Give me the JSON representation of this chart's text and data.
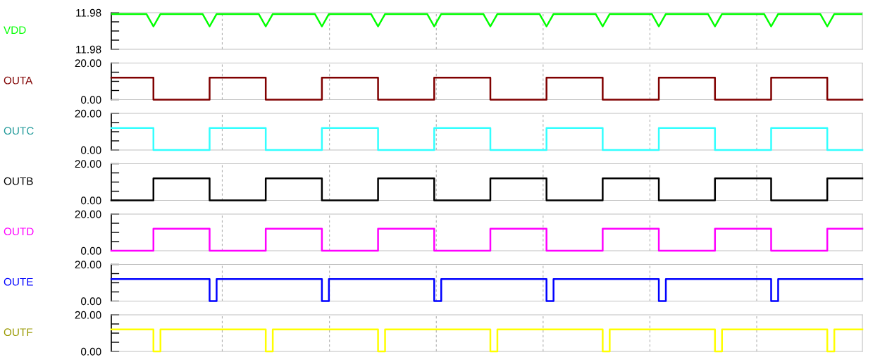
{
  "chart_data": [
    {
      "type": "line",
      "categories": [
        null,
        null,
        null,
        null,
        null,
        null,
        null,
        null,
        null,
        null,
        null,
        null,
        null,
        null,
        null,
        null,
        null,
        null,
        null,
        null,
        null,
        null,
        null,
        null,
        null,
        null,
        null,
        null,
        null,
        null,
        null,
        null,
        null,
        null,
        null,
        null,
        null,
        null,
        null,
        null,
        null,
        null,
        null,
        null,
        null,
        null,
        null,
        null,
        null,
        null,
        null,
        null,
        null,
        null,
        null,
        null,
        null,
        null,
        null,
        null,
        null,
        null,
        null,
        null,
        null,
        null,
        null,
        null,
        null,
        null,
        null,
        null,
        null,
        null,
        null,
        null,
        null,
        null,
        null,
        null,
        null,
        null,
        null,
        null,
        null,
        null,
        null,
        null,
        null,
        null,
        null,
        null,
        null,
        null,
        null,
        null,
        null,
        null,
        null,
        null,
        null,
        null,
        null,
        null,
        null,
        null,
        null,
        null
      ],
      "ylim": [
        11.976,
        11.984
      ],
      "yticks": [
        {
          "value": 11.976,
          "label": "11.98"
        },
        {
          "value": 11.978,
          "label": null
        },
        {
          "value": 11.98,
          "label": null
        },
        {
          "value": 11.982,
          "label": null
        },
        {
          "value": 11.984,
          "label": "11.98"
        }
      ],
      "tick_labels": "y",
      "series": [
        {
          "name": "VDD",
          "color": "#00ff00",
          "values": [
            11.9837,
            11.9837,
            11.9837,
            11.9837,
            11.9837,
            11.9837,
            11.981,
            11.9837,
            11.9837,
            11.9837,
            11.9837,
            11.9837,
            11.9837,
            11.9837,
            11.981,
            11.9837,
            11.9837,
            11.9837,
            11.9837,
            11.9837,
            11.9837,
            11.9837,
            11.981,
            11.9837,
            11.9837,
            11.9837,
            11.9837,
            11.9837,
            11.9837,
            11.9837,
            11.981,
            11.9837,
            11.9837,
            11.9837,
            11.9837,
            11.9837,
            11.9837,
            11.9837,
            11.981,
            11.9837,
            11.9837,
            11.9837,
            11.9837,
            11.9837,
            11.9837,
            11.9837,
            11.981,
            11.9837,
            11.9837,
            11.9837,
            11.9837,
            11.9837,
            11.9837,
            11.9837,
            11.981,
            11.9837,
            11.9837,
            11.9837,
            11.9837,
            11.9837,
            11.9837,
            11.9837,
            11.981,
            11.9837,
            11.9837,
            11.9837,
            11.9837,
            11.9837,
            11.9837,
            11.9837,
            11.981,
            11.9837,
            11.9837,
            11.9837,
            11.9837,
            11.9837,
            11.9837,
            11.9837,
            11.981,
            11.9837,
            11.9837,
            11.9837,
            11.9837,
            11.9837,
            11.9837,
            11.9837,
            11.981,
            11.9837,
            11.9837,
            11.9837,
            11.9837,
            11.9837,
            11.9837,
            11.9837,
            11.981,
            11.9837,
            11.9837,
            11.9837,
            11.9837,
            11.9837,
            11.9837,
            11.9837,
            11.981,
            11.9837,
            11.9837,
            11.9837,
            11.9837,
            11.9837
          ]
        }
      ]
    },
    {
      "type": "step",
      "categories": [
        null,
        null,
        null,
        null,
        null,
        null,
        null,
        null,
        null,
        null,
        null,
        null,
        null,
        null,
        null,
        null,
        null,
        null,
        null,
        null,
        null,
        null,
        null,
        null,
        null,
        null,
        null,
        null,
        null,
        null,
        null,
        null,
        null,
        null,
        null,
        null,
        null,
        null,
        null,
        null,
        null,
        null,
        null,
        null,
        null,
        null,
        null,
        null,
        null,
        null,
        null,
        null,
        null,
        null,
        null,
        null,
        null,
        null,
        null,
        null,
        null,
        null,
        null,
        null,
        null,
        null,
        null,
        null,
        null,
        null,
        null,
        null,
        null,
        null,
        null,
        null,
        null,
        null,
        null,
        null,
        null,
        null,
        null,
        null,
        null,
        null,
        null,
        null,
        null,
        null,
        null,
        null,
        null,
        null,
        null,
        null,
        null,
        null,
        null,
        null,
        null,
        null,
        null,
        null,
        null,
        null,
        null,
        null
      ],
      "ylim": [
        0,
        20
      ],
      "yticks": [
        {
          "value": 0,
          "label": "0.00"
        },
        {
          "value": 5,
          "label": null
        },
        {
          "value": 10,
          "label": null
        },
        {
          "value": 15,
          "label": null
        },
        {
          "value": 20,
          "label": "20.00"
        }
      ],
      "tick_labels": "y",
      "series": [
        {
          "name": "OUTA",
          "color": "#800000",
          "values": [
            12,
            12,
            12,
            12,
            12,
            12,
            0,
            0,
            0,
            0,
            0,
            0,
            0,
            0,
            12,
            12,
            12,
            12,
            12,
            12,
            12,
            12,
            0,
            0,
            0,
            0,
            0,
            0,
            0,
            0,
            12,
            12,
            12,
            12,
            12,
            12,
            12,
            12,
            0,
            0,
            0,
            0,
            0,
            0,
            0,
            0,
            12,
            12,
            12,
            12,
            12,
            12,
            12,
            12,
            0,
            0,
            0,
            0,
            0,
            0,
            0,
            0,
            12,
            12,
            12,
            12,
            12,
            12,
            12,
            12,
            0,
            0,
            0,
            0,
            0,
            0,
            0,
            0,
            12,
            12,
            12,
            12,
            12,
            12,
            12,
            12,
            0,
            0,
            0,
            0,
            0,
            0,
            0,
            0,
            12,
            12,
            12,
            12,
            12,
            12,
            12,
            12,
            0,
            0,
            0,
            0,
            0,
            0
          ]
        }
      ]
    },
    {
      "type": "step",
      "categories": [
        null,
        null,
        null,
        null,
        null,
        null,
        null,
        null,
        null,
        null,
        null,
        null,
        null,
        null,
        null,
        null,
        null,
        null,
        null,
        null,
        null,
        null,
        null,
        null,
        null,
        null,
        null,
        null,
        null,
        null,
        null,
        null,
        null,
        null,
        null,
        null,
        null,
        null,
        null,
        null,
        null,
        null,
        null,
        null,
        null,
        null,
        null,
        null,
        null,
        null,
        null,
        null,
        null,
        null,
        null,
        null,
        null,
        null,
        null,
        null,
        null,
        null,
        null,
        null,
        null,
        null,
        null,
        null,
        null,
        null,
        null,
        null,
        null,
        null,
        null,
        null,
        null,
        null,
        null,
        null,
        null,
        null,
        null,
        null,
        null,
        null,
        null,
        null,
        null,
        null,
        null,
        null,
        null,
        null,
        null,
        null,
        null,
        null,
        null,
        null,
        null,
        null,
        null,
        null,
        null,
        null,
        null,
        null
      ],
      "ylim": [
        0,
        20
      ],
      "yticks": [
        {
          "value": 0,
          "label": "0.00"
        },
        {
          "value": 5,
          "label": null
        },
        {
          "value": 10,
          "label": null
        },
        {
          "value": 15,
          "label": null
        },
        {
          "value": 20,
          "label": "20.00"
        }
      ],
      "tick_labels": "y",
      "series": [
        {
          "name": "OUTC",
          "color": "#33ffff",
          "values": [
            12,
            12,
            12,
            12,
            12,
            12,
            0,
            0,
            0,
            0,
            0,
            0,
            0,
            0,
            12,
            12,
            12,
            12,
            12,
            12,
            12,
            12,
            0,
            0,
            0,
            0,
            0,
            0,
            0,
            0,
            12,
            12,
            12,
            12,
            12,
            12,
            12,
            12,
            0,
            0,
            0,
            0,
            0,
            0,
            0,
            0,
            12,
            12,
            12,
            12,
            12,
            12,
            12,
            12,
            0,
            0,
            0,
            0,
            0,
            0,
            0,
            0,
            12,
            12,
            12,
            12,
            12,
            12,
            12,
            12,
            0,
            0,
            0,
            0,
            0,
            0,
            0,
            0,
            12,
            12,
            12,
            12,
            12,
            12,
            12,
            12,
            0,
            0,
            0,
            0,
            0,
            0,
            0,
            0,
            12,
            12,
            12,
            12,
            12,
            12,
            12,
            12,
            0,
            0,
            0,
            0,
            0,
            0
          ]
        }
      ]
    },
    {
      "type": "step",
      "categories": [
        null,
        null,
        null,
        null,
        null,
        null,
        null,
        null,
        null,
        null,
        null,
        null,
        null,
        null,
        null,
        null,
        null,
        null,
        null,
        null,
        null,
        null,
        null,
        null,
        null,
        null,
        null,
        null,
        null,
        null,
        null,
        null,
        null,
        null,
        null,
        null,
        null,
        null,
        null,
        null,
        null,
        null,
        null,
        null,
        null,
        null,
        null,
        null,
        null,
        null,
        null,
        null,
        null,
        null,
        null,
        null,
        null,
        null,
        null,
        null,
        null,
        null,
        null,
        null,
        null,
        null,
        null,
        null,
        null,
        null,
        null,
        null,
        null,
        null,
        null,
        null,
        null,
        null,
        null,
        null,
        null,
        null,
        null,
        null,
        null,
        null,
        null,
        null,
        null,
        null,
        null,
        null,
        null,
        null,
        null,
        null,
        null,
        null,
        null,
        null,
        null,
        null,
        null,
        null,
        null,
        null,
        null,
        null
      ],
      "ylim": [
        0,
        20
      ],
      "yticks": [
        {
          "value": 0,
          "label": "0.00"
        },
        {
          "value": 5,
          "label": null
        },
        {
          "value": 10,
          "label": null
        },
        {
          "value": 15,
          "label": null
        },
        {
          "value": 20,
          "label": "20.00"
        }
      ],
      "tick_labels": "y",
      "series": [
        {
          "name": "OUTB",
          "color": "#000000",
          "values": [
            0,
            0,
            0,
            0,
            0,
            0,
            12,
            12,
            12,
            12,
            12,
            12,
            12,
            12,
            0,
            0,
            0,
            0,
            0,
            0,
            0,
            0,
            12,
            12,
            12,
            12,
            12,
            12,
            12,
            12,
            0,
            0,
            0,
            0,
            0,
            0,
            0,
            0,
            12,
            12,
            12,
            12,
            12,
            12,
            12,
            12,
            0,
            0,
            0,
            0,
            0,
            0,
            0,
            0,
            12,
            12,
            12,
            12,
            12,
            12,
            12,
            12,
            0,
            0,
            0,
            0,
            0,
            0,
            0,
            0,
            12,
            12,
            12,
            12,
            12,
            12,
            12,
            12,
            0,
            0,
            0,
            0,
            0,
            0,
            0,
            0,
            12,
            12,
            12,
            12,
            12,
            12,
            12,
            12,
            0,
            0,
            0,
            0,
            0,
            0,
            0,
            0,
            12,
            12,
            12,
            12,
            12,
            12
          ]
        }
      ]
    },
    {
      "type": "step",
      "categories": [
        null,
        null,
        null,
        null,
        null,
        null,
        null,
        null,
        null,
        null,
        null,
        null,
        null,
        null,
        null,
        null,
        null,
        null,
        null,
        null,
        null,
        null,
        null,
        null,
        null,
        null,
        null,
        null,
        null,
        null,
        null,
        null,
        null,
        null,
        null,
        null,
        null,
        null,
        null,
        null,
        null,
        null,
        null,
        null,
        null,
        null,
        null,
        null,
        null,
        null,
        null,
        null,
        null,
        null,
        null,
        null,
        null,
        null,
        null,
        null,
        null,
        null,
        null,
        null,
        null,
        null,
        null,
        null,
        null,
        null,
        null,
        null,
        null,
        null,
        null,
        null,
        null,
        null,
        null,
        null,
        null,
        null,
        null,
        null,
        null,
        null,
        null,
        null,
        null,
        null,
        null,
        null,
        null,
        null,
        null,
        null,
        null,
        null,
        null,
        null,
        null,
        null,
        null,
        null,
        null,
        null,
        null,
        null
      ],
      "ylim": [
        0,
        20
      ],
      "yticks": [
        {
          "value": 0,
          "label": "0.00"
        },
        {
          "value": 5,
          "label": null
        },
        {
          "value": 10,
          "label": null
        },
        {
          "value": 15,
          "label": null
        },
        {
          "value": 20,
          "label": "20.00"
        }
      ],
      "tick_labels": "y",
      "series": [
        {
          "name": "OUTD",
          "color": "#ff00ff",
          "values": [
            0,
            0,
            0,
            0,
            0,
            0,
            12,
            12,
            12,
            12,
            12,
            12,
            12,
            12,
            0,
            0,
            0,
            0,
            0,
            0,
            0,
            0,
            12,
            12,
            12,
            12,
            12,
            12,
            12,
            12,
            0,
            0,
            0,
            0,
            0,
            0,
            0,
            0,
            12,
            12,
            12,
            12,
            12,
            12,
            12,
            12,
            0,
            0,
            0,
            0,
            0,
            0,
            0,
            0,
            12,
            12,
            12,
            12,
            12,
            12,
            12,
            12,
            0,
            0,
            0,
            0,
            0,
            0,
            0,
            0,
            12,
            12,
            12,
            12,
            12,
            12,
            12,
            12,
            0,
            0,
            0,
            0,
            0,
            0,
            0,
            0,
            12,
            12,
            12,
            12,
            12,
            12,
            12,
            12,
            0,
            0,
            0,
            0,
            0,
            0,
            0,
            0,
            12,
            12,
            12,
            12,
            12,
            12
          ]
        }
      ]
    },
    {
      "type": "step",
      "categories": [
        null,
        null,
        null,
        null,
        null,
        null,
        null,
        null,
        null,
        null,
        null,
        null,
        null,
        null,
        null,
        null,
        null,
        null,
        null,
        null,
        null,
        null,
        null,
        null,
        null,
        null,
        null,
        null,
        null,
        null,
        null,
        null,
        null,
        null,
        null,
        null,
        null,
        null,
        null,
        null,
        null,
        null,
        null,
        null,
        null,
        null,
        null,
        null,
        null,
        null,
        null,
        null,
        null,
        null,
        null,
        null,
        null,
        null,
        null,
        null,
        null,
        null,
        null,
        null,
        null,
        null,
        null,
        null,
        null,
        null,
        null,
        null,
        null,
        null,
        null,
        null,
        null,
        null,
        null,
        null,
        null,
        null,
        null,
        null,
        null,
        null,
        null,
        null,
        null,
        null,
        null,
        null,
        null,
        null,
        null,
        null,
        null,
        null,
        null,
        null,
        null,
        null,
        null,
        null,
        null,
        null,
        null,
        null
      ],
      "ylim": [
        0,
        20
      ],
      "yticks": [
        {
          "value": 0,
          "label": "0.00"
        },
        {
          "value": 5,
          "label": null
        },
        {
          "value": 10,
          "label": null
        },
        {
          "value": 15,
          "label": null
        },
        {
          "value": 20,
          "label": "20.00"
        }
      ],
      "tick_labels": "y",
      "series": [
        {
          "name": "OUTE",
          "color": "#0000ff",
          "values": [
            12,
            12,
            12,
            12,
            12,
            12,
            12,
            12,
            12,
            12,
            12,
            12,
            12,
            12,
            0,
            12,
            12,
            12,
            12,
            12,
            12,
            12,
            12,
            12,
            12,
            12,
            12,
            12,
            12,
            12,
            0,
            12,
            12,
            12,
            12,
            12,
            12,
            12,
            12,
            12,
            12,
            12,
            12,
            12,
            12,
            12,
            0,
            12,
            12,
            12,
            12,
            12,
            12,
            12,
            12,
            12,
            12,
            12,
            12,
            12,
            12,
            12,
            0,
            12,
            12,
            12,
            12,
            12,
            12,
            12,
            12,
            12,
            12,
            12,
            12,
            12,
            12,
            12,
            0,
            12,
            12,
            12,
            12,
            12,
            12,
            12,
            12,
            12,
            12,
            12,
            12,
            12,
            12,
            12,
            0,
            12,
            12,
            12,
            12,
            12,
            12,
            12,
            12,
            12,
            12,
            12,
            12,
            12
          ]
        }
      ]
    },
    {
      "type": "step",
      "categories": [
        null,
        null,
        null,
        null,
        null,
        null,
        null,
        null,
        null,
        null,
        null,
        null,
        null,
        null,
        null,
        null,
        null,
        null,
        null,
        null,
        null,
        null,
        null,
        null,
        null,
        null,
        null,
        null,
        null,
        null,
        null,
        null,
        null,
        null,
        null,
        null,
        null,
        null,
        null,
        null,
        null,
        null,
        null,
        null,
        null,
        null,
        null,
        null,
        null,
        null,
        null,
        null,
        null,
        null,
        null,
        null,
        null,
        null,
        null,
        null,
        null,
        null,
        null,
        null,
        null,
        null,
        null,
        null,
        null,
        null,
        null,
        null,
        null,
        null,
        null,
        null,
        null,
        null,
        null,
        null,
        null,
        null,
        null,
        null,
        null,
        null,
        null,
        null,
        null,
        null,
        null,
        null,
        null,
        null,
        null,
        null,
        null,
        null,
        null,
        null,
        null,
        null,
        null,
        null,
        null,
        null,
        null,
        null
      ],
      "ylim": [
        0,
        20
      ],
      "yticks": [
        {
          "value": 0,
          "label": "0.00"
        },
        {
          "value": 5,
          "label": null
        },
        {
          "value": 10,
          "label": null
        },
        {
          "value": 15,
          "label": null
        },
        {
          "value": 20,
          "label": "20.00"
        }
      ],
      "tick_labels": "y",
      "series": [
        {
          "name": "OUTF",
          "color": "#ffff00",
          "values": [
            12,
            12,
            12,
            12,
            12,
            12,
            0,
            12,
            12,
            12,
            12,
            12,
            12,
            12,
            12,
            12,
            12,
            12,
            12,
            12,
            12,
            12,
            0,
            12,
            12,
            12,
            12,
            12,
            12,
            12,
            12,
            12,
            12,
            12,
            12,
            12,
            12,
            12,
            0,
            12,
            12,
            12,
            12,
            12,
            12,
            12,
            12,
            12,
            12,
            12,
            12,
            12,
            12,
            12,
            0,
            12,
            12,
            12,
            12,
            12,
            12,
            12,
            12,
            12,
            12,
            12,
            12,
            12,
            12,
            12,
            0,
            12,
            12,
            12,
            12,
            12,
            12,
            12,
            12,
            12,
            12,
            12,
            12,
            12,
            12,
            12,
            0,
            12,
            12,
            12,
            12,
            12,
            12,
            12,
            12,
            12,
            12,
            12,
            12,
            12,
            12,
            12,
            0,
            12,
            12,
            12,
            12,
            12
          ]
        }
      ]
    }
  ]
}
